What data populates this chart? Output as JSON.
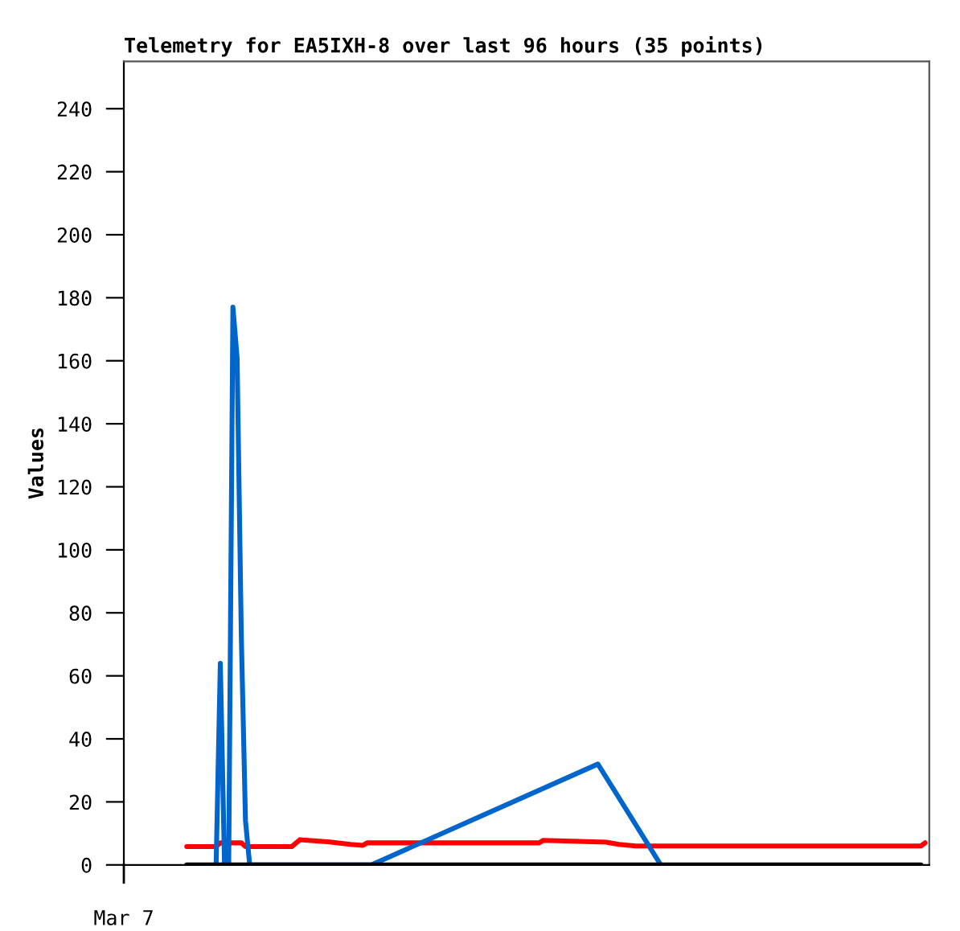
{
  "chart_data": {
    "type": "line",
    "title": "Telemetry for EA5IXH-8 over last 96 hours (35 points)",
    "ylabel": "Values",
    "annotations": [
      "Mar 7"
    ],
    "categories": [
      null,
      null,
      null,
      null,
      null,
      null,
      null,
      null,
      null,
      null,
      null,
      null,
      null,
      null,
      null,
      null,
      null,
      null,
      null,
      null,
      null,
      null,
      null,
      null,
      null,
      null,
      null,
      null,
      null,
      null,
      null,
      null,
      null,
      null,
      null,
      null,
      null,
      null,
      null,
      null,
      null,
      null,
      null,
      null,
      null,
      null,
      null,
      null,
      null,
      null,
      null,
      null,
      null,
      null,
      null,
      null,
      null,
      null,
      null,
      null,
      null,
      null,
      null,
      null,
      null,
      null,
      null,
      null,
      null,
      null,
      null,
      null,
      null,
      null,
      null,
      null,
      null,
      null,
      null,
      null,
      null,
      null,
      null,
      null,
      null,
      null,
      null,
      null,
      null,
      null,
      null,
      null,
      null,
      null,
      null,
      null,
      null,
      null,
      null,
      null,
      null,
      null,
      null,
      null,
      null,
      null,
      null,
      null,
      null,
      null,
      null,
      null,
      null,
      null,
      null,
      null,
      null,
      null,
      null,
      null,
      null,
      null,
      null,
      null,
      null,
      null,
      null,
      null,
      null,
      null,
      null,
      null,
      null,
      null,
      null,
      null,
      null,
      null,
      null,
      null,
      null,
      null,
      null,
      null,
      null,
      null,
      null,
      null,
      null,
      null,
      null,
      null,
      null,
      null,
      null,
      null,
      null,
      null,
      null,
      null,
      null,
      null,
      null,
      null,
      null,
      null,
      null,
      null,
      null,
      null,
      null,
      null,
      null,
      null,
      null,
      null,
      null,
      null,
      null,
      null,
      null,
      null,
      null,
      null,
      null,
      null,
      null,
      null,
      null,
      null,
      null,
      null,
      null
    ],
    "ylim": [
      0,
      255
    ],
    "yticks": [
      0,
      20,
      40,
      60,
      80,
      100,
      120,
      140,
      160,
      180,
      200,
      220,
      240
    ],
    "grid": false,
    "legend": false,
    "marker": "none",
    "line_style": "solid",
    "series": [
      {
        "color": "#ff0000",
        "values": [
          null,
          null,
          null,
          null,
          null,
          null,
          null,
          null,
          null,
          null,
          null,
          null,
          null,
          null,
          null,
          5.8,
          null,
          null,
          null,
          null,
          null,
          null,
          5.8,
          7,
          null,
          null,
          null,
          null,
          7,
          5.8,
          null,
          null,
          null,
          null,
          null,
          null,
          null,
          null,
          null,
          null,
          5.8,
          null,
          8,
          null,
          null,
          null,
          null,
          null,
          null,
          7.3,
          null,
          null,
          null,
          null,
          6.5,
          null,
          null,
          6.2,
          7,
          null,
          null,
          null,
          null,
          null,
          null,
          null,
          null,
          null,
          null,
          null,
          null,
          null,
          null,
          null,
          null,
          null,
          null,
          null,
          null,
          null,
          null,
          null,
          null,
          null,
          null,
          null,
          null,
          null,
          null,
          null,
          null,
          null,
          null,
          null,
          null,
          null,
          null,
          null,
          null,
          7,
          7.8,
          null,
          null,
          null,
          null,
          null,
          null,
          null,
          null,
          null,
          null,
          null,
          null,
          null,
          null,
          7.2,
          null,
          null,
          6.5,
          null,
          null,
          null,
          6,
          null,
          null,
          null,
          null,
          null,
          null,
          null,
          null,
          null,
          null,
          null,
          null,
          null,
          null,
          null,
          null,
          null,
          null,
          null,
          null,
          null,
          null,
          null,
          null,
          null,
          null,
          null,
          null,
          null,
          null,
          null,
          null,
          null,
          null,
          null,
          null,
          null,
          null,
          null,
          null,
          null,
          null,
          null,
          null,
          null,
          null,
          null,
          null,
          null,
          null,
          null,
          null,
          null,
          null,
          null,
          null,
          null,
          null,
          null,
          null,
          null,
          null,
          null,
          null,
          null,
          null,
          null,
          6,
          7,
          null
        ]
      },
      {
        "color": "#0066cc",
        "values": [
          null,
          null,
          null,
          null,
          null,
          null,
          null,
          null,
          null,
          null,
          null,
          null,
          null,
          null,
          null,
          null,
          null,
          null,
          null,
          null,
          null,
          null,
          0,
          64,
          0,
          0,
          177,
          161,
          73,
          14,
          0,
          null,
          null,
          null,
          null,
          null,
          null,
          null,
          null,
          null,
          null,
          null,
          null,
          null,
          null,
          null,
          null,
          null,
          null,
          null,
          null,
          null,
          null,
          null,
          null,
          null,
          null,
          null,
          null,
          0,
          null,
          null,
          null,
          null,
          null,
          null,
          null,
          null,
          null,
          null,
          null,
          null,
          null,
          null,
          null,
          null,
          null,
          null,
          null,
          null,
          null,
          null,
          null,
          null,
          null,
          null,
          null,
          null,
          null,
          null,
          null,
          null,
          null,
          null,
          null,
          null,
          null,
          null,
          null,
          null,
          null,
          null,
          null,
          null,
          null,
          null,
          null,
          null,
          null,
          null,
          null,
          null,
          null,
          32,
          null,
          null,
          null,
          null,
          null,
          null,
          null,
          null,
          null,
          null,
          null,
          null,
          null,
          null,
          0,
          null,
          null,
          null,
          null,
          null,
          null,
          null,
          null,
          null,
          null,
          null,
          null,
          null,
          null,
          null,
          null,
          null,
          null,
          null,
          null,
          null,
          null,
          null,
          null,
          null,
          null,
          null,
          null,
          null,
          null,
          null,
          null,
          null,
          null,
          null,
          null,
          null,
          null,
          null,
          null,
          null,
          null,
          null,
          null,
          null,
          null,
          null,
          null,
          null,
          null,
          null,
          null,
          null,
          null,
          null,
          null,
          null,
          null,
          null,
          null,
          null,
          null,
          null,
          null
        ]
      },
      {
        "color": "#000000",
        "values": [
          null,
          null,
          null,
          null,
          null,
          null,
          null,
          null,
          null,
          null,
          null,
          null,
          null,
          null,
          null,
          0,
          null,
          null,
          null,
          null,
          null,
          null,
          null,
          null,
          null,
          null,
          null,
          null,
          null,
          null,
          null,
          null,
          null,
          null,
          null,
          null,
          null,
          null,
          null,
          null,
          null,
          null,
          null,
          null,
          null,
          null,
          null,
          null,
          null,
          null,
          null,
          null,
          null,
          null,
          null,
          null,
          null,
          null,
          null,
          null,
          null,
          null,
          null,
          null,
          null,
          null,
          null,
          null,
          null,
          null,
          null,
          null,
          null,
          null,
          null,
          null,
          null,
          null,
          null,
          null,
          null,
          null,
          null,
          null,
          null,
          null,
          null,
          null,
          null,
          null,
          null,
          null,
          null,
          null,
          null,
          null,
          null,
          null,
          null,
          null,
          null,
          null,
          null,
          null,
          null,
          null,
          null,
          null,
          null,
          null,
          null,
          null,
          null,
          null,
          null,
          null,
          null,
          null,
          null,
          null,
          null,
          null,
          null,
          null,
          null,
          null,
          null,
          null,
          null,
          null,
          null,
          null,
          null,
          null,
          null,
          null,
          null,
          null,
          null,
          null,
          null,
          null,
          null,
          null,
          null,
          null,
          null,
          null,
          null,
          null,
          null,
          null,
          null,
          null,
          null,
          null,
          null,
          null,
          null,
          null,
          null,
          null,
          null,
          null,
          null,
          null,
          null,
          null,
          null,
          null,
          null,
          null,
          null,
          null,
          null,
          null,
          null,
          null,
          null,
          null,
          null,
          null,
          null,
          null,
          null,
          null,
          null,
          null,
          null,
          null,
          0,
          null,
          null
        ]
      }
    ]
  }
}
